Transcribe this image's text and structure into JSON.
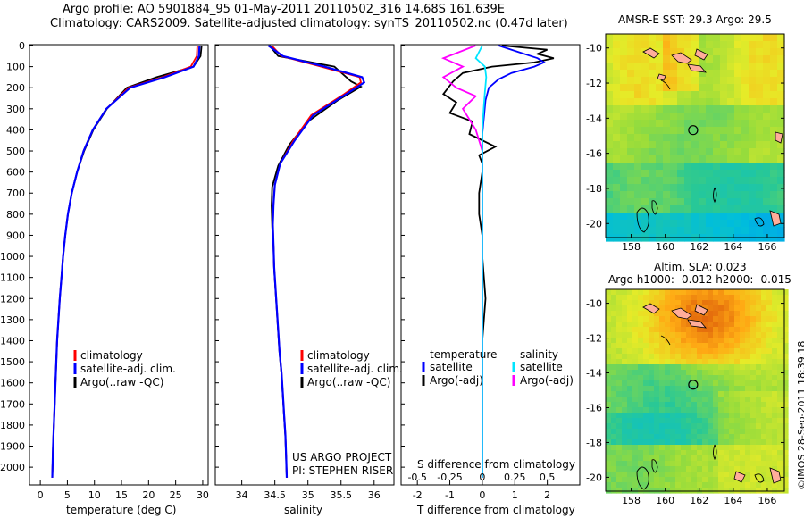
{
  "header": {
    "line1": "Argo profile: AO 5901884_95 01-May-2011 20110502_316 14.68S 161.639E",
    "line2": "Climatology: CARS2009. Satellite-adjusted climatology: synTS_20110502.nc (0.47d later)"
  },
  "depth_ticks": [
    "0",
    "100",
    "200",
    "300",
    "400",
    "500",
    "600",
    "700",
    "800",
    "900",
    "1000",
    "1100",
    "1200",
    "1300",
    "1400",
    "1500",
    "1600",
    "1700",
    "1800",
    "1900",
    "2000"
  ],
  "colors": {
    "climatology": "#ff0000",
    "satellite": "#0000ff",
    "argo": "#000000",
    "sal_satellite": "#00e5ff",
    "sal_argo": "#ff00ff"
  },
  "legend_profile": {
    "climatology": "climatology",
    "satellite": "satellite-adj. clim.",
    "argo": "Argo(..raw -QC)"
  },
  "legend_diff": {
    "temperature": "temperature",
    "salinity": "salinity",
    "t_satellite": "satellite",
    "t_argo": "Argo(-adj)",
    "s_satellite": "satellite",
    "s_argo": "Argo(-adj)"
  },
  "credit": {
    "line1": "US ARGO PROJECT",
    "line2": "PI: STEPHEN RISER"
  },
  "side_credit": "©IMOS 28-Sep-2011 18:39:18",
  "chart_data": [
    {
      "type": "line",
      "xlabel": "temperature (deg C)",
      "x_ticks": [
        "0",
        "5",
        "10",
        "15",
        "20",
        "25",
        "30"
      ],
      "xlim": [
        -2,
        31
      ],
      "ylim": [
        2080,
        0
      ],
      "series": [
        {
          "name": "climatology",
          "x": [
            29.0,
            28.9,
            27.8,
            22.6,
            16.3,
            12.2,
            9.7,
            8.0,
            6.8,
            5.8,
            5.1,
            4.6,
            4.2,
            3.9,
            3.6,
            3.35,
            3.1,
            2.95,
            2.8,
            2.65,
            2.5,
            2.35,
            2.25,
            2.2
          ],
          "y": [
            0,
            50,
            100,
            150,
            200,
            300,
            400,
            500,
            600,
            700,
            800,
            900,
            1000,
            1100,
            1200,
            1300,
            1400,
            1500,
            1600,
            1700,
            1800,
            1900,
            2000,
            2050
          ]
        },
        {
          "name": "satellite-adj. clim.",
          "x": [
            29.4,
            29.3,
            28.3,
            23.0,
            16.6,
            12.2,
            9.7,
            8.0,
            6.8,
            5.8,
            5.1,
            4.6,
            4.2,
            3.9,
            3.6,
            3.35,
            3.1,
            2.95,
            2.8,
            2.65,
            2.5,
            2.35,
            2.25,
            2.2
          ],
          "y": [
            0,
            50,
            100,
            150,
            200,
            300,
            400,
            500,
            600,
            700,
            800,
            900,
            1000,
            1100,
            1200,
            1300,
            1400,
            1500,
            1600,
            1700,
            1800,
            1900,
            2000,
            2050
          ]
        },
        {
          "name": "Argo(..raw -QC)",
          "x": [
            29.8,
            29.6,
            28.3,
            21.5,
            16.0,
            12.3,
            9.8,
            8.1,
            6.8,
            5.8,
            5.1,
            4.6,
            4.2,
            3.9,
            3.6,
            3.35,
            3.1,
            2.95,
            2.8,
            2.65,
            2.5,
            2.35,
            2.25,
            2.2
          ],
          "y": [
            0,
            50,
            100,
            150,
            200,
            300,
            400,
            500,
            600,
            700,
            800,
            900,
            1000,
            1100,
            1200,
            1300,
            1400,
            1500,
            1600,
            1700,
            1800,
            1900,
            2000,
            2050
          ]
        }
      ]
    },
    {
      "type": "line",
      "xlabel": "salinity",
      "x_ticks": [
        "34",
        "34.5",
        "35",
        "35.5",
        "36"
      ],
      "xlim": [
        33.6,
        36.3
      ],
      "ylim": [
        2080,
        0
      ],
      "series": [
        {
          "name": "climatology",
          "x": [
            34.45,
            34.6,
            35.2,
            35.78,
            35.8,
            35.55,
            35.05,
            34.78,
            34.58,
            34.5,
            34.48,
            34.47,
            34.48,
            34.49,
            34.51,
            34.53,
            34.55,
            34.57,
            34.6,
            34.62,
            34.64,
            34.66,
            34.67,
            34.68
          ],
          "y": [
            0,
            50,
            100,
            150,
            175,
            230,
            330,
            450,
            560,
            660,
            750,
            850,
            950,
            1050,
            1150,
            1250,
            1350,
            1450,
            1550,
            1650,
            1750,
            1850,
            1950,
            2050
          ]
        },
        {
          "name": "satellite-adj. clim.",
          "x": [
            34.4,
            34.62,
            35.25,
            35.82,
            35.85,
            35.58,
            35.08,
            34.8,
            34.58,
            34.5,
            34.48,
            34.47,
            34.48,
            34.49,
            34.51,
            34.53,
            34.55,
            34.57,
            34.6,
            34.62,
            34.64,
            34.66,
            34.67,
            34.68
          ],
          "y": [
            0,
            50,
            100,
            150,
            175,
            230,
            330,
            450,
            560,
            660,
            750,
            850,
            950,
            1050,
            1150,
            1250,
            1350,
            1450,
            1550,
            1650,
            1750,
            1850,
            1950,
            2050
          ]
        },
        {
          "name": "Argo(..raw -QC)",
          "x": [
            34.42,
            34.55,
            35.4,
            35.65,
            35.8,
            35.45,
            35.0,
            34.72,
            34.55,
            34.46,
            34.45,
            34.46,
            34.48,
            34.49,
            34.51,
            34.53,
            34.55,
            34.57,
            34.6,
            34.62,
            34.64,
            34.66,
            34.67,
            34.68
          ],
          "y": [
            0,
            50,
            100,
            170,
            195,
            260,
            360,
            470,
            570,
            670,
            760,
            860,
            960,
            1060,
            1160,
            1260,
            1360,
            1460,
            1560,
            1660,
            1760,
            1860,
            1960,
            2050
          ]
        }
      ]
    },
    {
      "type": "line",
      "xlabel": "T difference from climatology",
      "x2label": "S difference from climatology",
      "t_ticks": [
        "-2",
        "-1",
        "0",
        "1",
        "2"
      ],
      "s_ticks": [
        "-0.5",
        "-0.25",
        "0",
        "0.25",
        "0.5"
      ],
      "xlim": [
        -2.5,
        3.0
      ],
      "ylim": [
        2080,
        0
      ],
      "series": [
        {
          "name": "temperature satellite",
          "x": [
            0.5,
            1.1,
            1.7,
            1.9,
            1.6,
            0.9,
            0.5,
            0.2,
            0.1,
            0.05,
            0.0,
            0.0,
            0.0,
            0.0,
            0.0,
            0.0,
            0.0,
            0.0,
            0.0,
            0.0,
            0.0
          ],
          "y": [
            0,
            30,
            60,
            80,
            100,
            130,
            160,
            200,
            260,
            340,
            420,
            500,
            600,
            800,
            1000,
            1200,
            1400,
            1600,
            1800,
            2000,
            2050
          ]
        },
        {
          "name": "temperature Argo(-adj)",
          "x": [
            0.6,
            2.0,
            1.7,
            2.2,
            1.6,
            0.3,
            -0.6,
            -0.9,
            -1.2,
            -0.8,
            -1.0,
            -0.3,
            -0.4,
            0.4,
            -0.1,
            0.0,
            0.0,
            -0.1,
            -0.1,
            0.0,
            0.0,
            0.1,
            0.0,
            0.0,
            0.0,
            0.0
          ],
          "y": [
            0,
            20,
            40,
            60,
            80,
            100,
            130,
            170,
            230,
            270,
            320,
            360,
            420,
            480,
            520,
            560,
            600,
            700,
            800,
            900,
            1000,
            1200,
            1400,
            1600,
            1800,
            2050
          ]
        },
        {
          "name": "salinity satellite",
          "x": [
            0.0,
            -0.05,
            0.02,
            0.03,
            0.02,
            0.01,
            0.0,
            0.0,
            0.0,
            0.0,
            0.0,
            0.0,
            0.0,
            0.0
          ],
          "y": [
            0,
            60,
            100,
            150,
            220,
            300,
            400,
            600,
            800,
            1000,
            1300,
            1600,
            1900,
            2050
          ]
        },
        {
          "name": "salinity Argo(-adj)",
          "x": [
            -0.05,
            -0.3,
            -0.15,
            -0.3,
            -0.2,
            -0.05,
            -0.15,
            -0.05,
            0.0,
            0.0,
            0.0,
            0.0,
            0.0
          ],
          "y": [
            0,
            60,
            100,
            150,
            200,
            240,
            300,
            400,
            500,
            700,
            1000,
            1500,
            2050
          ]
        }
      ]
    }
  ],
  "maps": [
    {
      "title": "AMSR-E SST: 29.3 Argo: 29.5",
      "x_ticks": [
        "158",
        "160",
        "162",
        "164",
        "166"
      ],
      "y_ticks": [
        "-10",
        "-12",
        "-14",
        "-16",
        "-18",
        "-20"
      ],
      "xlim": [
        156.5,
        167.0
      ],
      "ylim": [
        -20.8,
        -9.2
      ],
      "argo_position": {
        "lon": 161.639,
        "lat": -14.68
      }
    },
    {
      "title1": "Altim. SLA: 0.023",
      "title2": "Argo h1000: -0.012 h2000: -0.015",
      "x_ticks": [
        "158",
        "160",
        "162",
        "164",
        "166"
      ],
      "y_ticks": [
        "-10",
        "-12",
        "-14",
        "-16",
        "-18",
        "-20"
      ],
      "xlim": [
        156.5,
        167.0
      ],
      "ylim": [
        -20.8,
        -9.2
      ],
      "argo_position": {
        "lon": 161.639,
        "lat": -14.68
      }
    }
  ]
}
